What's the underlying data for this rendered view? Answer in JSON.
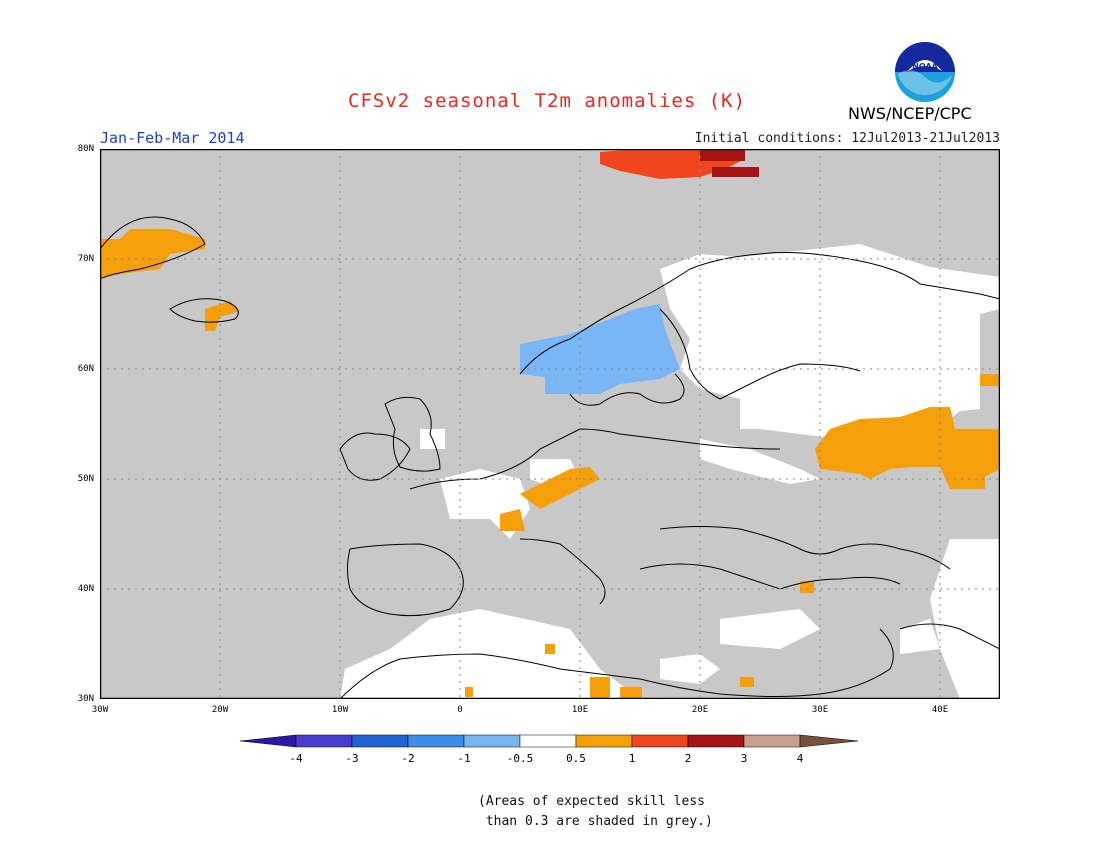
{
  "header": {
    "title": "CFSv2 seasonal T2m anomalies (K)",
    "season": "Jan-Feb-Mar 2014",
    "initial_conditions": "Initial conditions: 12Jul2013-21Jul2013",
    "agency": "NWS/NCEP/CPC",
    "logo_text": "NOAA"
  },
  "map": {
    "region": "Europe",
    "lon_range": [
      -30,
      45
    ],
    "lat_range": [
      30,
      80
    ],
    "lat_labels": [
      "80N",
      "70N",
      "60N",
      "50N",
      "40N",
      "30N"
    ],
    "lon_labels": [
      "30W",
      "20W",
      "10W",
      "0",
      "10E",
      "20E",
      "30E",
      "40E"
    ],
    "colors": {
      "low_skill_grey": "#c8c8c8",
      "neutral": "#ffffff",
      "cool_0_5_1": "#7ab6f5",
      "warm_0_5_1": "#f5a00a",
      "warm_1_2": "#f0461e",
      "warm_2_3": "#a51414",
      "coast": "#000000"
    }
  },
  "colorbar": {
    "labels": [
      "-4",
      "-3",
      "-2",
      "-1",
      "-0.5",
      "0.5",
      "1",
      "2",
      "3",
      "4"
    ],
    "colors": [
      "#2a18a8",
      "#4a3ccc",
      "#1e64d2",
      "#3c8ce8",
      "#78b4f2",
      "#ffffff",
      "#f5a00a",
      "#f0461e",
      "#a51414",
      "#c8a090",
      "#785038"
    ]
  },
  "note": "(Areas of expected skill less\n than 0.3 are shaded in grey.)"
}
